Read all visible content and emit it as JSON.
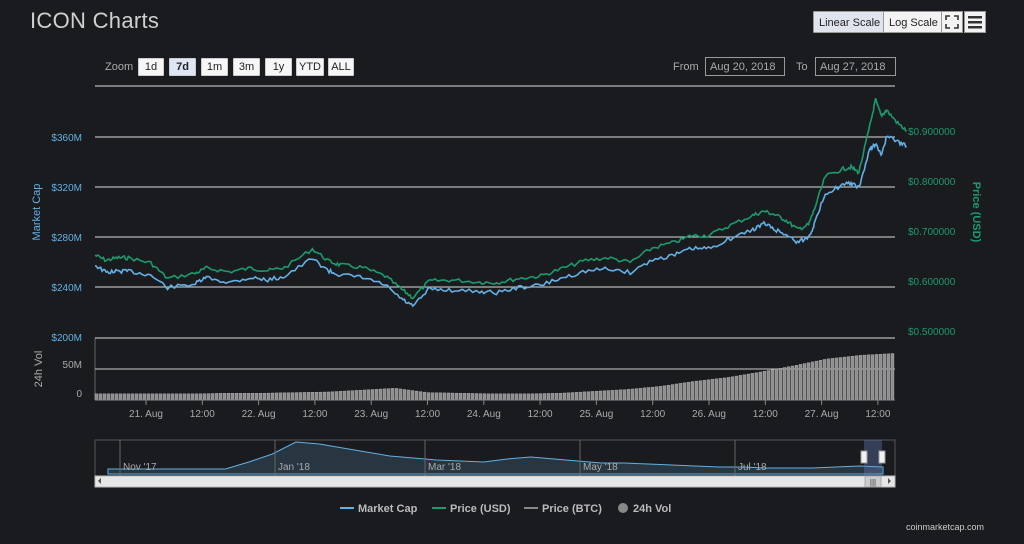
{
  "header": {
    "title": "ICON Charts"
  },
  "toolbar": {
    "linear_label": "Linear Scale",
    "log_label": "Log Scale",
    "fullscreen_icon": "fullscreen-icon",
    "menu_icon": "menu-icon"
  },
  "zoom": {
    "label": "Zoom",
    "buttons": [
      "1d",
      "7d",
      "1m",
      "3m",
      "1y",
      "YTD",
      "ALL"
    ],
    "selected": "7d"
  },
  "range": {
    "from_label": "From",
    "from_value": "Aug 20, 2018",
    "to_label": "To",
    "to_value": "Aug 27, 2018"
  },
  "colors": {
    "market_cap": "#62b1e6",
    "price_usd": "#1b9a6f",
    "price_btc": "#888888",
    "volume": "#9a9a9a",
    "background": "#1a1b1e"
  },
  "chart_data": {
    "type": "line",
    "x_ticks": [
      "21. Aug",
      "12:00",
      "22. Aug",
      "12:00",
      "23. Aug",
      "12:00",
      "24. Aug",
      "12:00",
      "25. Aug",
      "12:00",
      "26. Aug",
      "12:00",
      "27. Aug",
      "12:00"
    ],
    "left_axis": {
      "label": "Market Cap",
      "ticks": [
        "$200M",
        "$240M",
        "$280M",
        "$320M",
        "$360M"
      ],
      "range": [
        200,
        400
      ],
      "unit": "M USD"
    },
    "right_axis": {
      "label": "Price (USD)",
      "ticks": [
        "$0.500000",
        "$0.600000",
        "$0.700000",
        "$0.800000",
        "$0.900000"
      ],
      "range": [
        0.5,
        0.9
      ]
    },
    "volume_axis": {
      "label": "24h Vol",
      "ticks": [
        "0",
        "50M"
      ]
    },
    "series": [
      {
        "name": "Market Cap",
        "x_days": [
          0,
          0.1,
          0.2,
          0.3,
          0.5,
          0.65,
          0.9,
          1.0,
          1.2,
          1.4,
          1.55,
          1.7,
          1.95,
          2.1,
          2.2,
          2.4,
          2.6,
          2.75,
          2.85,
          3.0,
          3.2,
          3.45,
          3.6,
          3.8,
          4.0,
          4.2,
          4.4,
          4.6,
          4.8,
          5.0,
          5.2,
          5.35,
          5.5,
          5.7,
          5.9,
          6.0,
          6.1,
          6.2,
          6.3,
          6.4,
          6.45,
          6.55,
          6.7,
          6.78,
          6.85,
          6.95,
          7.0,
          7.05,
          7.1,
          7.2,
          7.28
        ],
        "values": [
          258,
          252,
          253,
          253,
          250,
          240,
          243,
          248,
          244,
          248,
          246,
          249,
          263,
          253,
          250,
          248,
          242,
          231,
          225,
          239,
          238,
          237,
          236,
          240,
          242,
          248,
          253,
          255,
          252,
          262,
          266,
          271,
          271,
          279,
          286,
          291,
          286,
          282,
          276,
          280,
          290,
          315,
          321,
          323,
          319,
          350,
          354,
          345,
          360,
          356,
          352
        ]
      },
      {
        "name": "Price (USD)",
        "x_days": [
          0,
          0.1,
          0.2,
          0.3,
          0.5,
          0.65,
          0.9,
          1.0,
          1.2,
          1.4,
          1.55,
          1.7,
          1.95,
          2.1,
          2.2,
          2.4,
          2.6,
          2.75,
          2.85,
          3.0,
          3.2,
          3.45,
          3.6,
          3.8,
          4.0,
          4.2,
          4.4,
          4.6,
          4.8,
          5.0,
          5.2,
          5.35,
          5.5,
          5.7,
          5.9,
          6.0,
          6.1,
          6.2,
          6.3,
          6.4,
          6.45,
          6.55,
          6.7,
          6.78,
          6.85,
          6.95,
          7.0,
          7.05,
          7.1,
          7.2,
          7.28
        ],
        "values": [
          0.66,
          0.65,
          0.655,
          0.655,
          0.645,
          0.615,
          0.625,
          0.635,
          0.628,
          0.635,
          0.63,
          0.636,
          0.672,
          0.648,
          0.641,
          0.636,
          0.62,
          0.594,
          0.578,
          0.61,
          0.612,
          0.608,
          0.607,
          0.615,
          0.62,
          0.635,
          0.65,
          0.655,
          0.646,
          0.674,
          0.685,
          0.698,
          0.698,
          0.718,
          0.737,
          0.745,
          0.738,
          0.727,
          0.71,
          0.719,
          0.748,
          0.812,
          0.826,
          0.83,
          0.82,
          0.91,
          0.96,
          0.93,
          0.94,
          0.915,
          0.9
        ]
      }
    ],
    "volume_values_m": [
      10,
      10,
      10,
      10,
      11,
      11,
      12,
      13,
      16,
      19,
      12,
      11,
      10,
      10,
      11,
      14,
      17,
      22,
      30,
      36,
      45,
      55,
      66,
      72,
      75
    ],
    "navigator": {
      "labels": [
        "Nov '17",
        "Jan '18",
        "Mar '18",
        "May '18",
        "Jul '18"
      ],
      "profile": [
        5,
        5,
        5,
        5,
        5,
        5,
        12,
        20,
        32,
        30,
        26,
        22,
        18,
        16,
        14,
        13,
        12,
        15,
        17,
        15,
        13,
        11,
        11,
        10,
        9,
        8,
        7,
        7,
        6,
        6,
        6,
        7,
        8,
        7
      ]
    },
    "legend": [
      "Market Cap",
      "Price (USD)",
      "Price (BTC)",
      "24h Vol"
    ]
  },
  "footer": {
    "credit": "coinmarketcap.com"
  }
}
